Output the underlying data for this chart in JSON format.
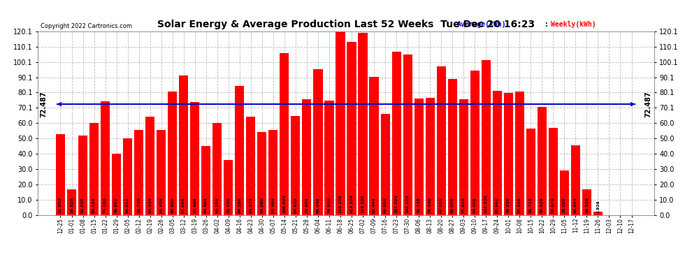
{
  "title": "Solar Energy & Average Production Last 52 Weeks  Tue Dec 20 16:23",
  "copyright": "Copyright 2022 Cartronics.com",
  "average_value": 72.487,
  "bar_color": "#ff0000",
  "average_line_color": "#0000cc",
  "background_color": "#ffffff",
  "plot_bg_color": "#ffffff",
  "grid_color": "#bbbbbb",
  "ylim": [
    0.0,
    120.1
  ],
  "yticks": [
    0.0,
    10.0,
    20.0,
    30.0,
    40.0,
    50.0,
    60.0,
    70.1,
    80.1,
    90.1,
    100.1,
    110.1,
    120.1
  ],
  "legend_avg_color": "#0000ff",
  "legend_weekly_color": "#ff0000",
  "categories": [
    "12-25",
    "01-01",
    "01-08",
    "01-15",
    "01-22",
    "01-29",
    "02-05",
    "02-12",
    "02-19",
    "02-26",
    "03-05",
    "03-12",
    "03-19",
    "03-26",
    "04-02",
    "04-09",
    "04-16",
    "04-23",
    "04-30",
    "05-07",
    "05-14",
    "05-21",
    "05-28",
    "06-04",
    "06-11",
    "06-18",
    "06-25",
    "07-02",
    "07-09",
    "07-16",
    "07-23",
    "07-30",
    "08-06",
    "08-13",
    "08-20",
    "08-27",
    "09-03",
    "09-10",
    "09-17",
    "09-24",
    "10-01",
    "10-08",
    "10-15",
    "10-22",
    "10-29",
    "11-05",
    "11-12",
    "11-19",
    "11-26",
    "12-03",
    "12-10",
    "12-17"
  ],
  "values": [
    52.852,
    16.828,
    52.028,
    60.184,
    74.188,
    39.992,
    49.912,
    55.72,
    64.424,
    55.476,
    80.9,
    91.096,
    73.696,
    44.864,
    60.288,
    35.92,
    84.296,
    64.272,
    54.08,
    55.464,
    106.024,
    64.672,
    75.904,
    95.448,
    74.62,
    120.1,
    113.224,
    119.22,
    90.464,
    66.056,
    107.024,
    105.128,
    76.128,
    76.84,
    97.02,
    89.008,
    75.616,
    94.408,
    101.536,
    80.992,
    79.836,
    80.536,
    56.716,
    70.628,
    56.876,
    29.088,
    45.624,
    16.536,
    1.928,
    0.0,
    0.0,
    0.0
  ]
}
